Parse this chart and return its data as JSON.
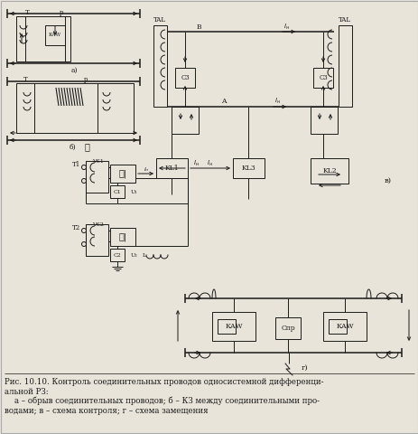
{
  "bg_color": "#e8e4da",
  "fig_width": 4.64,
  "fig_height": 4.8,
  "dpi": 100,
  "caption_line1": "Рис. 10.10. Контроль соединительных проводов односистемной дифференци-",
  "caption_line2": "альной РЗ:",
  "caption_line3": "    а – обрыв соединительных проводов; б – КЗ между соединительными про-",
  "caption_line4": "водами; в – схема контроля; г – схема замещения"
}
